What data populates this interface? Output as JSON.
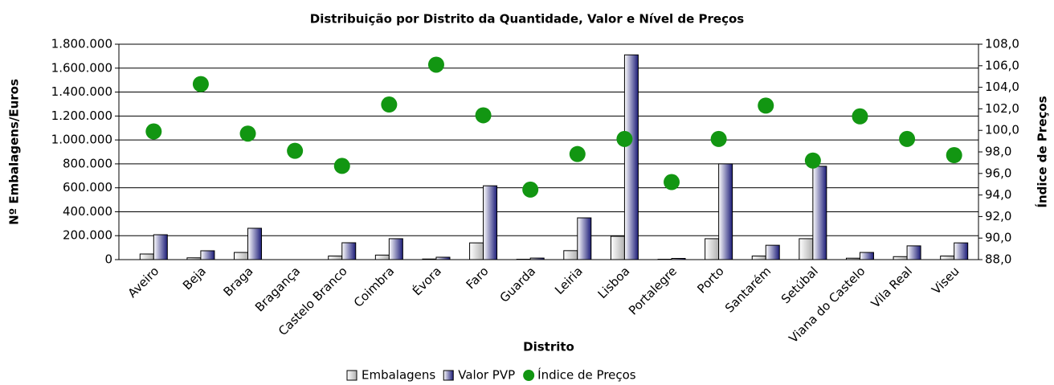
{
  "chart_data": {
    "type": "bar",
    "title": "Distribuição por Distrito da Quantidade, Valor e Nível de Preços",
    "x_label": "Distrito",
    "y_label": "Nº Embalagens/Euros",
    "y2_label": "Índice de Preços",
    "categories": [
      "Aveiro",
      "Beja",
      "Braga",
      "Bragança",
      "Castelo Branco",
      "Coimbra",
      "Évora",
      "Faro",
      "Guarda",
      "Leiria",
      "Lisboa",
      "Portalegre",
      "Porto",
      "Santarém",
      "Setúbal",
      "Viana do Castelo",
      "Vila Real",
      "Viseu"
    ],
    "series": [
      {
        "name": "Embalagens",
        "color": "#b0b0b0",
        "values": [
          47000,
          15000,
          60000,
          0,
          30000,
          38000,
          5000,
          140000,
          3000,
          75000,
          195000,
          3000,
          175000,
          30000,
          175000,
          12000,
          25000,
          30000
        ]
      },
      {
        "name": "Valor PVP",
        "color": "#1c1c78",
        "values": [
          208000,
          74000,
          262000,
          0,
          141000,
          175000,
          20000,
          617000,
          13000,
          349000,
          1711000,
          10000,
          800000,
          120000,
          780000,
          60000,
          115000,
          140000
        ]
      },
      {
        "name": "Índice de Preços",
        "color": "#129612",
        "axis": "y2",
        "type": "scatter",
        "values": [
          99.9,
          104.3,
          99.7,
          98.1,
          96.7,
          102.4,
          106.1,
          101.4,
          94.5,
          97.8,
          99.2,
          95.2,
          99.2,
          102.3,
          97.2,
          101.3,
          99.2,
          97.7
        ]
      }
    ],
    "ylim": [
      0,
      1800000
    ],
    "yticks": [
      0,
      {
        "value": 200000,
        "label": "200.000"
      },
      {
        "value": 400000,
        "label": "400.000"
      },
      {
        "value": 600000,
        "label": "600.000"
      },
      {
        "value": 800000,
        "label": "800.000"
      },
      {
        "value": 1000000,
        "label": "1.000.000"
      },
      {
        "value": 1200000,
        "label": "1.200.000"
      },
      {
        "value": 1400000,
        "label": "1.400.000"
      },
      {
        "value": 1600000,
        "label": "1.600.000"
      },
      {
        "value": 1800000,
        "label": "1.800.000"
      }
    ],
    "y2lim": [
      88,
      108
    ],
    "y2ticks": [
      {
        "value": 88,
        "label": "88,0"
      },
      {
        "value": 90,
        "label": "90,0"
      },
      {
        "value": 92,
        "label": "92,0"
      },
      {
        "value": 94,
        "label": "94,0"
      },
      {
        "value": 96,
        "label": "96,0"
      },
      {
        "value": 98,
        "label": "98,0"
      },
      {
        "value": 100,
        "label": "100,0"
      },
      {
        "value": 102,
        "label": "102,0"
      },
      {
        "value": 104,
        "label": "104,0"
      },
      {
        "value": 106,
        "label": "106,0"
      },
      {
        "value": 108,
        "label": "108,0"
      }
    ],
    "grid": true,
    "legend": "bottom"
  }
}
